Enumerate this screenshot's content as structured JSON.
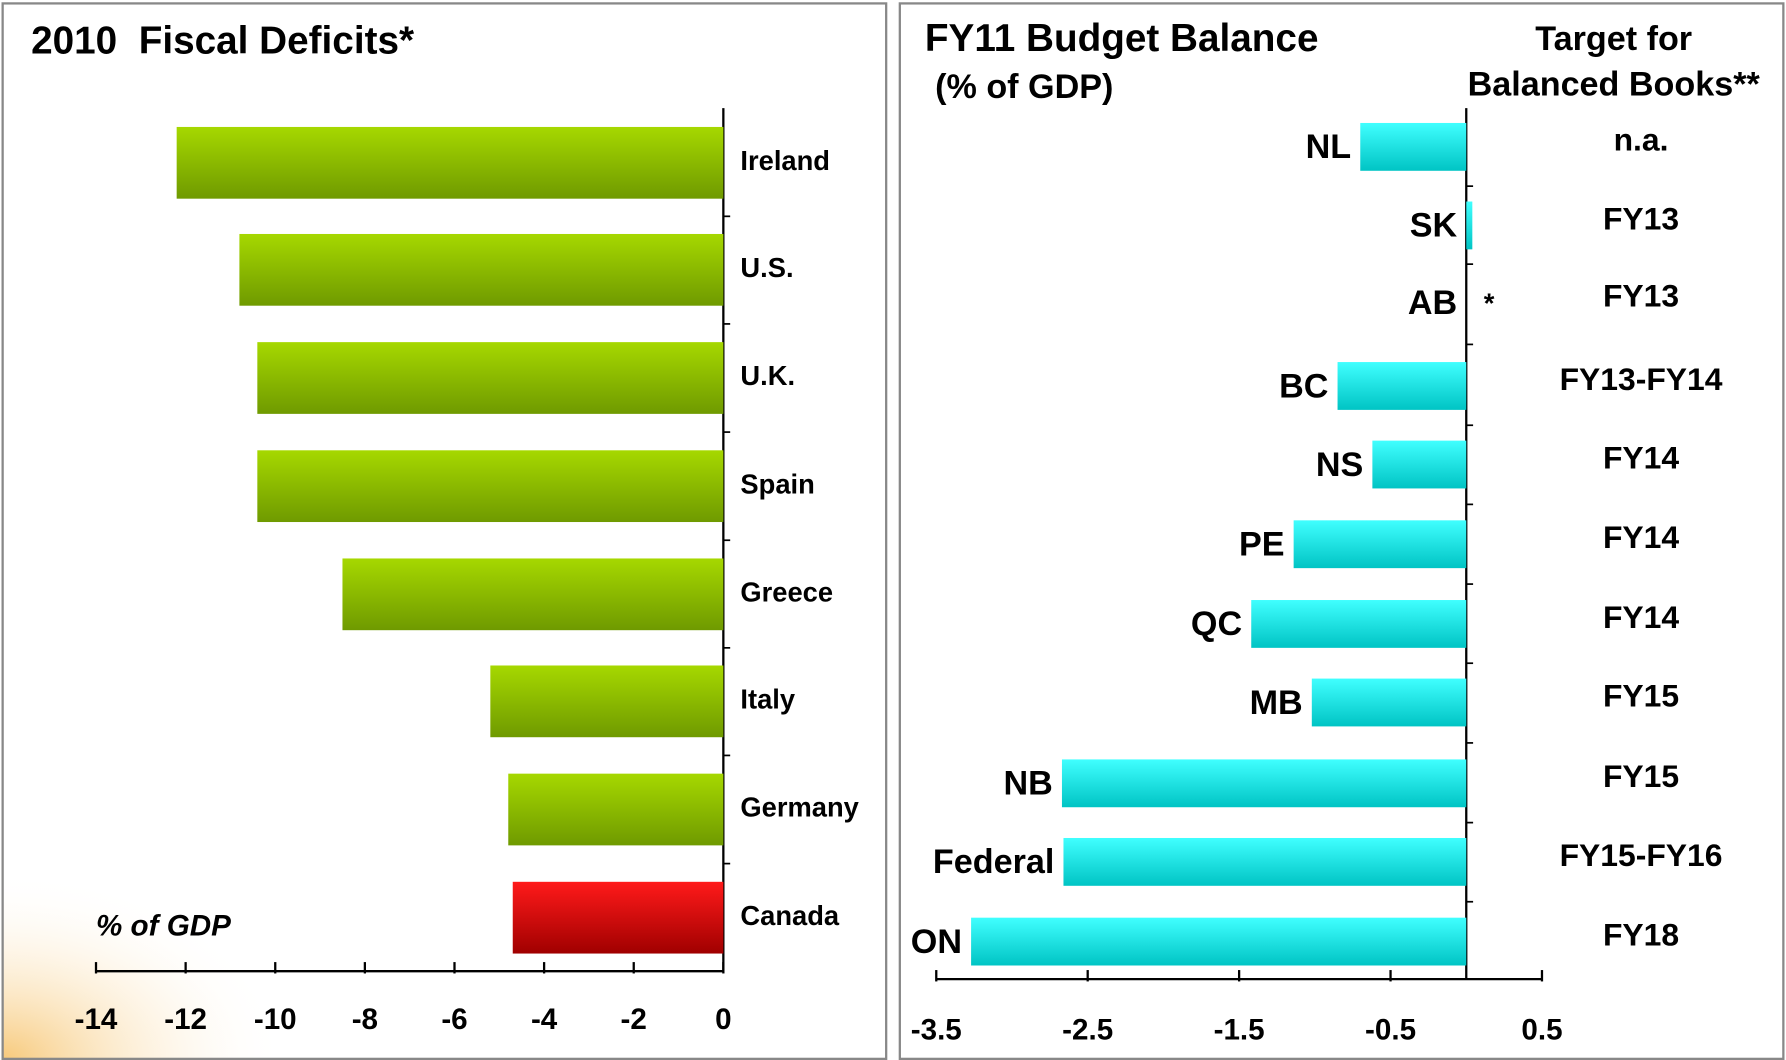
{
  "chart_data": [
    {
      "type": "bar",
      "orientation": "horizontal",
      "title": "2010  Fiscal Deficits*",
      "annotation": "% of GDP",
      "categories": [
        "Ireland",
        "U.S.",
        "U.K.",
        "Spain",
        "Greece",
        "Italy",
        "Germany",
        "Canada"
      ],
      "values": [
        -12.2,
        -10.8,
        -10.4,
        -10.4,
        -8.5,
        -5.2,
        -4.8,
        -4.7
      ],
      "colors": [
        "#8fc400",
        "#8fc400",
        "#8fc400",
        "#8fc400",
        "#8fc400",
        "#8fc400",
        "#8fc400",
        "#e00000"
      ],
      "xlim": [
        -14,
        0
      ],
      "xticks": [
        -14,
        -12,
        -10,
        -8,
        -6,
        -4,
        -2,
        0
      ]
    },
    {
      "type": "bar",
      "orientation": "horizontal",
      "title": "FY11 Budget Balance",
      "subtitle": "(% of GDP)",
      "target_header": [
        "Target for",
        "Balanced Books**"
      ],
      "categories": [
        "NL",
        "SK",
        "AB",
        "BC",
        "NS",
        "PE",
        "QC",
        "MB",
        "NB",
        "Federal",
        "ON"
      ],
      "label_colors": [
        "#000",
        "#000",
        "#000",
        "#000",
        "#000",
        "#000",
        "#000",
        "#000",
        "#000",
        "#ff0000",
        "#000"
      ],
      "values": [
        -0.7,
        0.04,
        null,
        -0.85,
        -0.62,
        -1.14,
        -1.42,
        -1.02,
        -2.67,
        -2.66,
        -3.27
      ],
      "value_labels": [
        null,
        null,
        "*",
        null,
        null,
        null,
        null,
        null,
        null,
        null,
        null
      ],
      "targets": [
        "n.a.",
        "FY13",
        "FY13",
        "FY13-FY14",
        "FY14",
        "FY14",
        "FY14",
        "FY15",
        "FY15",
        "FY15-FY16",
        "FY18"
      ],
      "color": "#00e0e0",
      "xlim": [
        -3.5,
        0.5
      ],
      "xticks": [
        -3.5,
        -2.5,
        -1.5,
        -0.5,
        0.5
      ]
    }
  ]
}
